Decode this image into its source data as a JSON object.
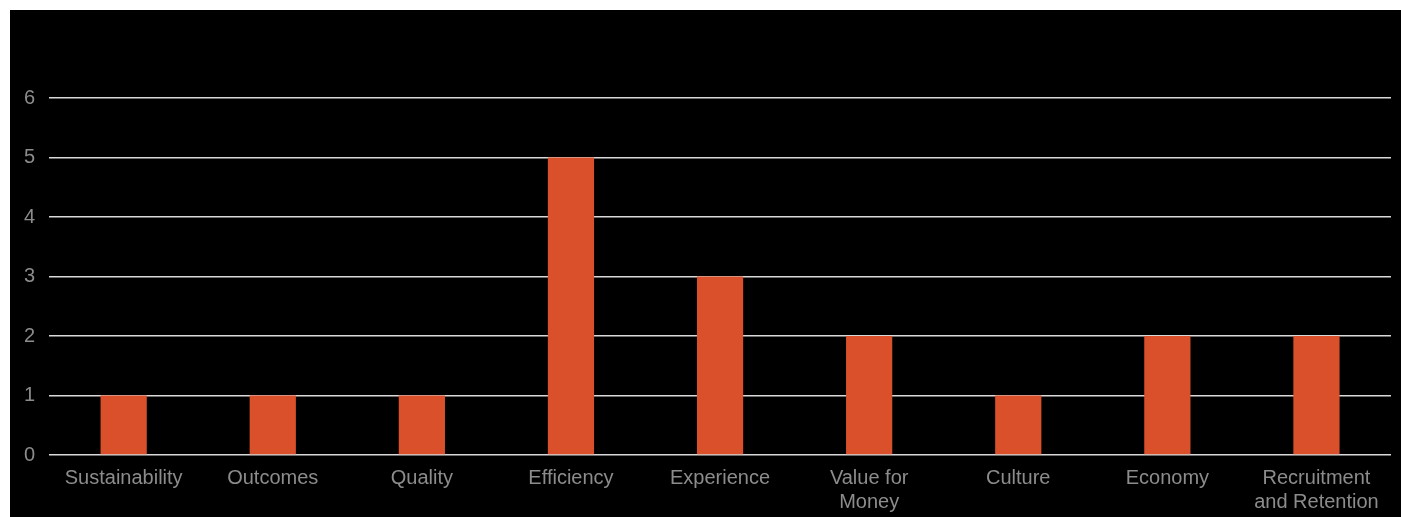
{
  "chart_data": {
    "type": "bar",
    "categories": [
      "Sustainability",
      "Outcomes",
      "Quality",
      "Efficiency",
      "Experience",
      "Value for Money",
      "Culture",
      "Economy",
      "Recruitment and Retention"
    ],
    "values": [
      1,
      1,
      1,
      5,
      3,
      2,
      1,
      2,
      2
    ],
    "color": "#d9502a",
    "ylim": [
      0,
      6
    ],
    "yticks": [
      0,
      1,
      2,
      3,
      4,
      5,
      6
    ],
    "grid": "y"
  }
}
